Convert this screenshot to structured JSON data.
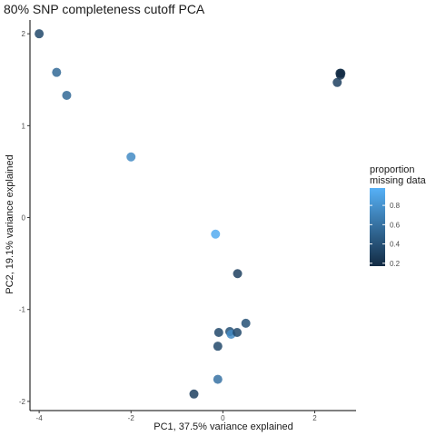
{
  "chart_data": {
    "type": "scatter",
    "title": "80% SNP completeness cutoff PCA",
    "xlabel": "PC1, 37.5% variance explained",
    "ylabel": "PC2, 19.1% variance explained",
    "xlim": [
      -4.2,
      2.9
    ],
    "ylim": [
      -2.1,
      2.15
    ],
    "xticks": [
      -4,
      -2,
      0,
      2
    ],
    "yticks": [
      -2,
      -1,
      0,
      1,
      2
    ],
    "grid": false,
    "legend": {
      "title_lines": [
        "proportion",
        "missing data"
      ],
      "position": "right",
      "range": [
        0.17,
        0.98
      ],
      "ticks": [
        0.8,
        0.6,
        0.4,
        0.2
      ],
      "low_color": "#132b43",
      "high_color": "#56b1f7"
    },
    "points": [
      {
        "x": -4.0,
        "y": 2.0,
        "value": 0.35
      },
      {
        "x": -3.62,
        "y": 1.58,
        "value": 0.55
      },
      {
        "x": -3.4,
        "y": 1.33,
        "value": 0.55
      },
      {
        "x": -2.0,
        "y": 0.66,
        "value": 0.75
      },
      {
        "x": 2.57,
        "y": 1.57,
        "value": 0.2
      },
      {
        "x": 2.56,
        "y": 1.55,
        "value": 0.22
      },
      {
        "x": 2.55,
        "y": 1.57,
        "value": 0.18
      },
      {
        "x": 2.49,
        "y": 1.47,
        "value": 0.3
      },
      {
        "x": -0.16,
        "y": -0.18,
        "value": 0.95
      },
      {
        "x": 0.32,
        "y": -0.61,
        "value": 0.3
      },
      {
        "x": -0.09,
        "y": -1.25,
        "value": 0.35
      },
      {
        "x": 0.15,
        "y": -1.24,
        "value": 0.4
      },
      {
        "x": 0.18,
        "y": -1.27,
        "value": 0.75
      },
      {
        "x": 0.31,
        "y": -1.25,
        "value": 0.35
      },
      {
        "x": 0.5,
        "y": -1.15,
        "value": 0.4
      },
      {
        "x": -0.11,
        "y": -1.4,
        "value": 0.35
      },
      {
        "x": -0.11,
        "y": -1.76,
        "value": 0.6
      },
      {
        "x": -0.63,
        "y": -1.92,
        "value": 0.3
      }
    ]
  }
}
